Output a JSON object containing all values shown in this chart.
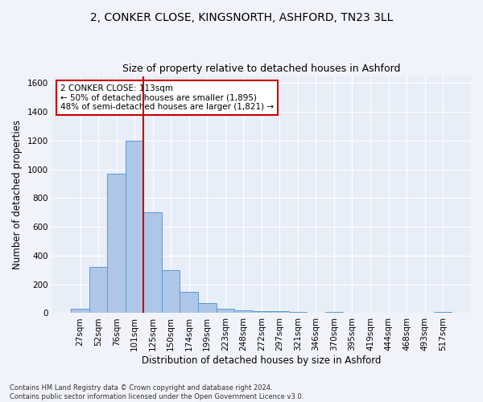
{
  "title_line1": "2, CONKER CLOSE, KINGSNORTH, ASHFORD, TN23 3LL",
  "title_line2": "Size of property relative to detached houses in Ashford",
  "xlabel": "Distribution of detached houses by size in Ashford",
  "ylabel": "Number of detached properties",
  "footnote": "Contains HM Land Registry data © Crown copyright and database right 2024.\nContains public sector information licensed under the Open Government Licence v3.0.",
  "bar_labels": [
    "27sqm",
    "52sqm",
    "76sqm",
    "101sqm",
    "125sqm",
    "150sqm",
    "174sqm",
    "199sqm",
    "223sqm",
    "248sqm",
    "272sqm",
    "297sqm",
    "321sqm",
    "346sqm",
    "370sqm",
    "395sqm",
    "419sqm",
    "444sqm",
    "468sqm",
    "493sqm",
    "517sqm"
  ],
  "bar_values": [
    30,
    320,
    970,
    1200,
    700,
    300,
    150,
    70,
    28,
    20,
    15,
    15,
    10,
    0,
    10,
    0,
    0,
    0,
    0,
    0,
    10
  ],
  "bar_color": "#aec6e8",
  "bar_edge_color": "#5b9bd5",
  "property_line_x": 3.5,
  "annotation_text": "2 CONKER CLOSE: 113sqm\n← 50% of detached houses are smaller (1,895)\n48% of semi-detached houses are larger (1,821) →",
  "annotation_box_color": "#ffffff",
  "annotation_box_edge": "#cc0000",
  "vline_color": "#cc0000",
  "ylim": [
    0,
    1650
  ],
  "yticks": [
    0,
    200,
    400,
    600,
    800,
    1000,
    1200,
    1400,
    1600
  ],
  "background_color": "#e8eef7",
  "plot_bg_color": "#e8eef7",
  "outer_bg_color": "#f0f4fa",
  "grid_color": "#ffffff",
  "title_fontsize": 10,
  "subtitle_fontsize": 9,
  "axis_label_fontsize": 8.5,
  "tick_fontsize": 7.5,
  "footnote_fontsize": 6
}
